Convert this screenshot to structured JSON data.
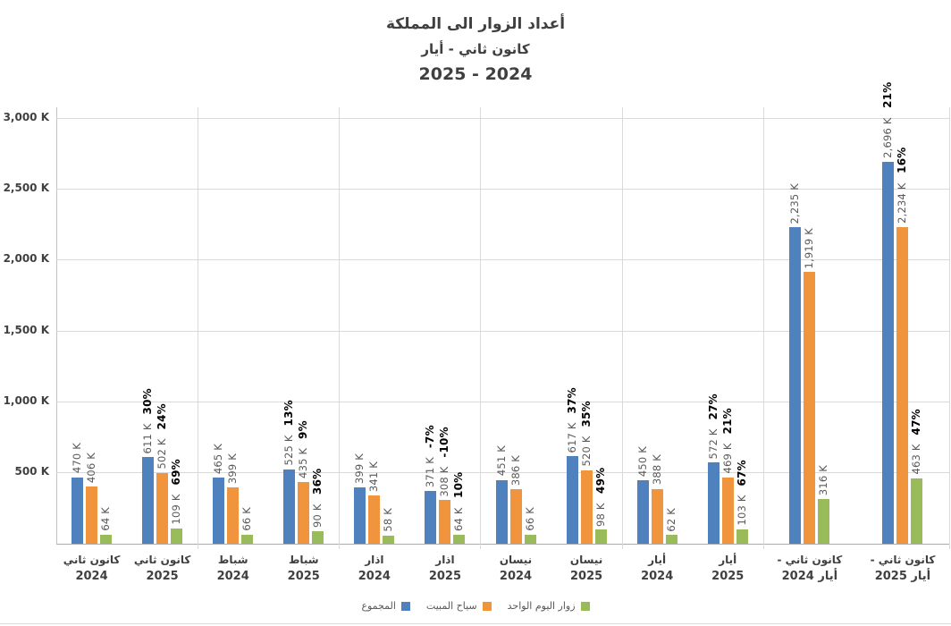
{
  "title": {
    "line1": "أعداد الزوار الى المملكة",
    "line2": "كانون ثاني - أيار",
    "line3": "2024 - 2025"
  },
  "y_axis": {
    "unit": "K",
    "min": 0,
    "max": 3000,
    "gridline_step": 500,
    "tick_labels": [
      "3,000 K",
      "2,500 K",
      "2,000 K",
      "1,500 K",
      "1,000 K",
      "500 K"
    ],
    "tick_values": [
      3000,
      2500,
      2000,
      1500,
      1000,
      500
    ]
  },
  "legend": {
    "items": [
      {
        "label": "المجموع",
        "color": "#4E81BD"
      },
      {
        "label": "سياح المبيت",
        "color": "#F0943E"
      },
      {
        "label": "زوار اليوم الواحد",
        "color": "#9ABB59"
      }
    ]
  },
  "colors": {
    "blue": "#4E81BD",
    "orange": "#F0943E",
    "green": "#9ABB59",
    "grid": "#D9D9D9",
    "axis": "#ABABAB",
    "title_text": "#3F3F3F",
    "axis_text": "#404040",
    "value_label": "#595959",
    "percent_label": "#000000"
  },
  "chart_data": {
    "type": "bar",
    "title": "أعداد الزوار الى المملكة كانون ثاني - أيار 2024 - 2025",
    "ylabel": "",
    "xlabel": "",
    "ylim": [
      0,
      3000
    ],
    "unit": "thousands of visitors (K)",
    "grid": true,
    "legend_position": "bottom",
    "series_names": [
      "المجموع",
      "سياح المبيت",
      "زوار اليوم الواحد"
    ],
    "series_colors": [
      "#4E81BD",
      "#F0943E",
      "#9ABB59"
    ],
    "groups": [
      {
        "label": [
          "كانون ثاني",
          "2024"
        ],
        "values": [
          470,
          406,
          64
        ],
        "labels": [
          "470 K",
          "406 K",
          "64 K"
        ],
        "pct": null,
        "wide": false,
        "sep_after": false
      },
      {
        "label": [
          "كانون ثاني",
          "2025"
        ],
        "values": [
          611,
          502,
          109
        ],
        "labels": [
          "611 K",
          "502 K",
          "109 K"
        ],
        "pct": [
          "30%",
          "24%",
          "69%"
        ],
        "wide": false,
        "sep_after": true
      },
      {
        "label": [
          "شباط",
          "2024"
        ],
        "values": [
          465,
          399,
          66
        ],
        "labels": [
          "465 K",
          "399 K",
          "66 K"
        ],
        "pct": null,
        "wide": false,
        "sep_after": false
      },
      {
        "label": [
          "شباط",
          "2025"
        ],
        "values": [
          525,
          435,
          90
        ],
        "labels": [
          "525 K",
          "435 K",
          "90 K"
        ],
        "pct": [
          "13%",
          "9%",
          "36%"
        ],
        "wide": false,
        "sep_after": true
      },
      {
        "label": [
          "اذار",
          "2024"
        ],
        "values": [
          399,
          341,
          58
        ],
        "labels": [
          "399 K",
          "341 K",
          "58 K"
        ],
        "pct": null,
        "wide": false,
        "sep_after": false
      },
      {
        "label": [
          "اذار",
          "2025"
        ],
        "values": [
          371,
          308,
          64
        ],
        "labels": [
          "371 K",
          "308 K",
          "64 K"
        ],
        "pct": [
          "-7%",
          "-10%",
          "10%"
        ],
        "wide": false,
        "sep_after": true
      },
      {
        "label": [
          "نيسان",
          "2024"
        ],
        "values": [
          451,
          386,
          66
        ],
        "labels": [
          "451 K",
          "386 K",
          "66 K"
        ],
        "pct": null,
        "wide": false,
        "sep_after": false
      },
      {
        "label": [
          "نيسان",
          "2025"
        ],
        "values": [
          617,
          520,
          98
        ],
        "labels": [
          "617 K",
          "520 K",
          "98 K"
        ],
        "pct": [
          "37%",
          "35%",
          "49%"
        ],
        "wide": false,
        "sep_after": true
      },
      {
        "label": [
          "أيار",
          "2024"
        ],
        "values": [
          450,
          388,
          62
        ],
        "labels": [
          "450 K",
          "388 K",
          "62 K"
        ],
        "pct": null,
        "wide": false,
        "sep_after": false
      },
      {
        "label": [
          "أيار",
          "2025"
        ],
        "values": [
          572,
          469,
          103
        ],
        "labels": [
          "572 K",
          "469 K",
          "103 K"
        ],
        "pct": [
          "27%",
          "21%",
          "67%"
        ],
        "wide": false,
        "sep_after": true
      },
      {
        "label": [
          "كانون ثاني -",
          "أيار 2024"
        ],
        "values": [
          2235,
          1919,
          316
        ],
        "labels": [
          "2,235 K",
          "1,919 K",
          "316 K"
        ],
        "pct": null,
        "wide": true,
        "sep_after": false
      },
      {
        "label": [
          "كانون ثاني -",
          "أيار 2025"
        ],
        "values": [
          2696,
          2234,
          463
        ],
        "labels": [
          "2,696 K",
          "2,234 K",
          "463 K"
        ],
        "pct": [
          "21%",
          "16%",
          "47%"
        ],
        "wide": true,
        "sep_after": true
      }
    ]
  }
}
